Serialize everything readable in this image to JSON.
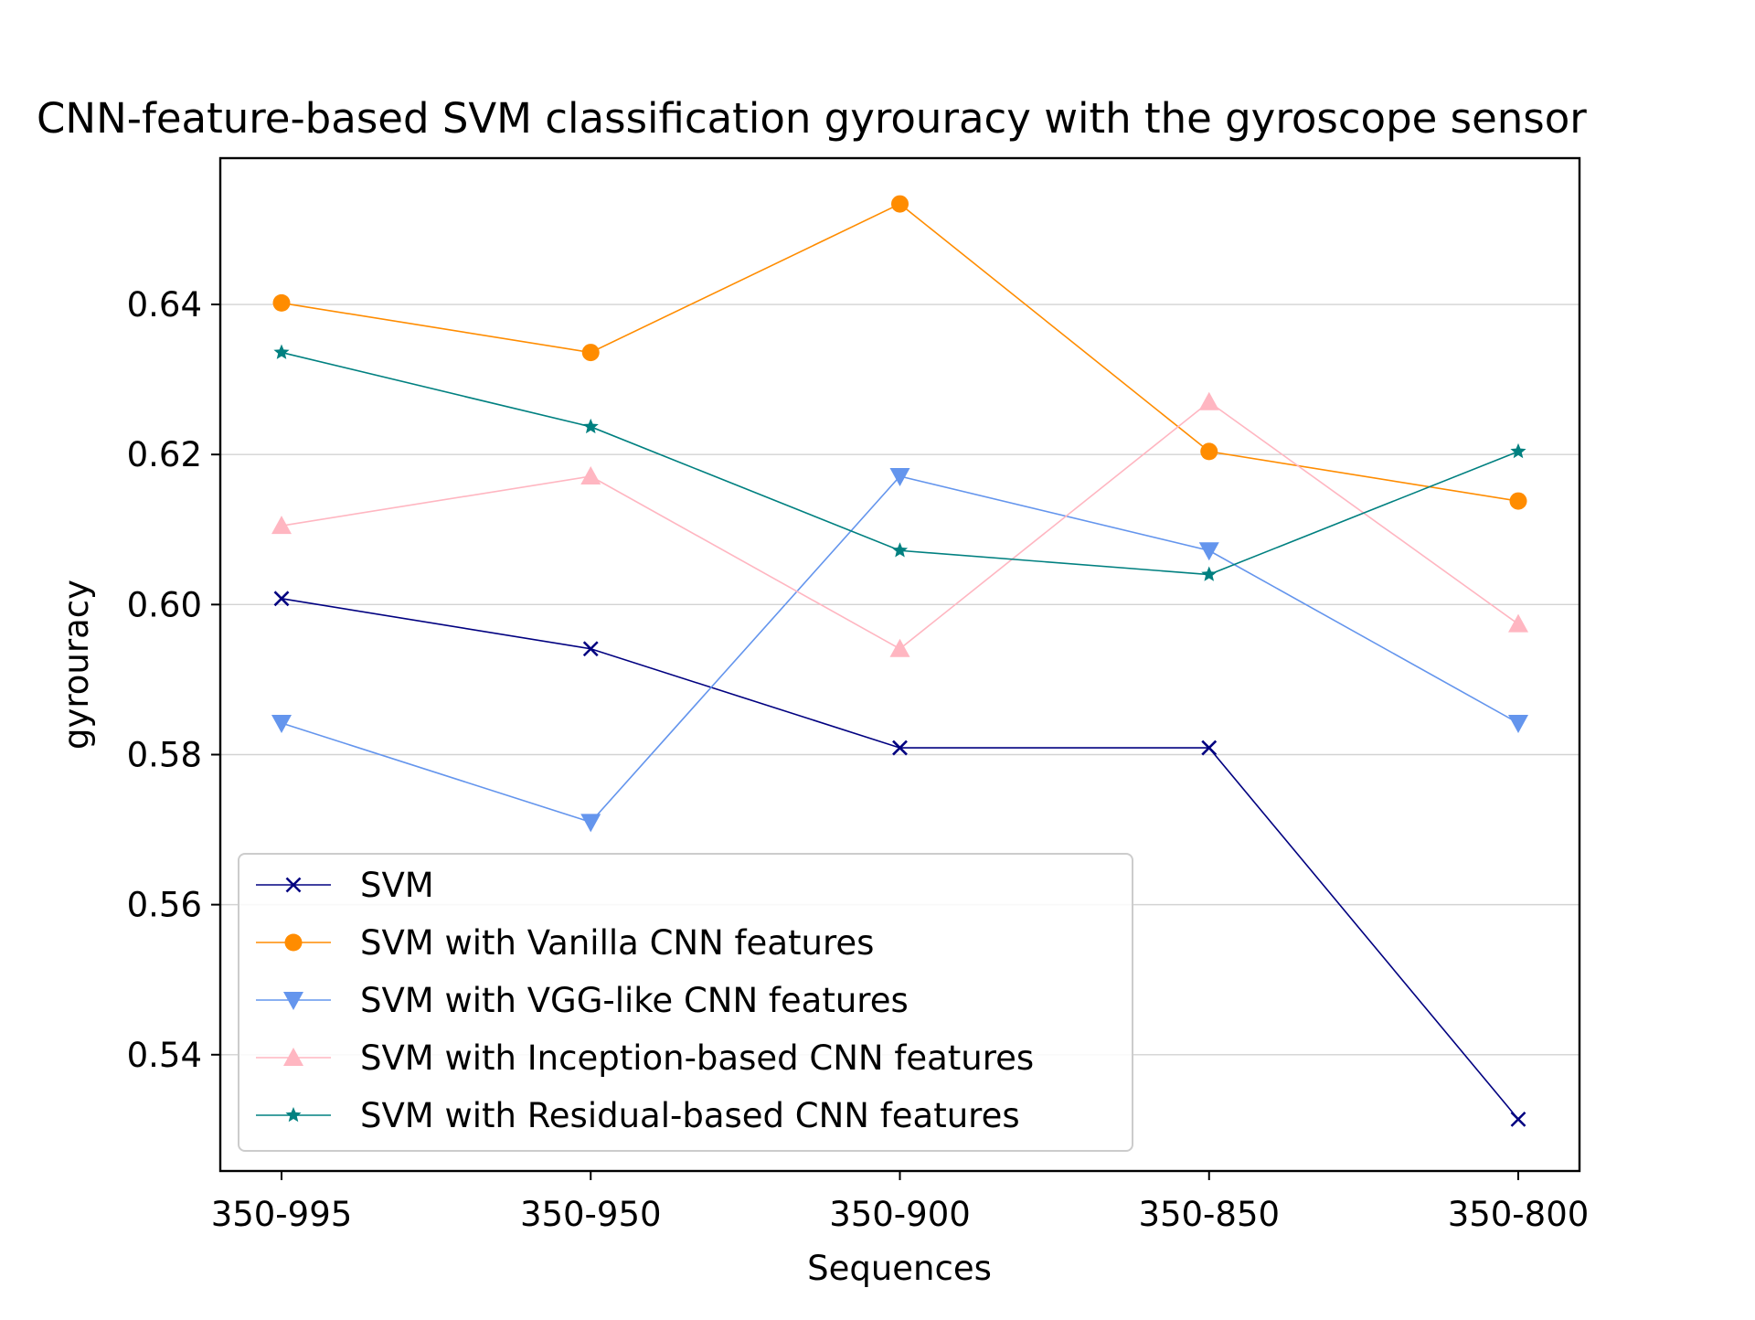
{
  "chart_data": {
    "type": "line",
    "title": "CNN-feature-based SVM classification gyrouracy with the gyroscope sensor",
    "xlabel": "Sequences",
    "ylabel": "gyrouracy",
    "categories": [
      "350-995",
      "350-950",
      "350-900",
      "350-850",
      "350-800"
    ],
    "ylim": [
      0.5245,
      0.6595
    ],
    "yticks": [
      0.54,
      0.56,
      0.58,
      0.6,
      0.62,
      0.64
    ],
    "ytick_labels": [
      "0.54",
      "0.56",
      "0.58",
      "0.60",
      "0.62",
      "0.64"
    ],
    "grid": "horizontal",
    "legend_position": "lower-left",
    "series": [
      {
        "name": "SVM",
        "color": "#000080",
        "marker": "x",
        "values": [
          0.6008,
          0.5941,
          0.5809,
          0.5809,
          0.5314
        ]
      },
      {
        "name": "SVM with Vanilla CNN features",
        "color": "#ff8c00",
        "marker": "circle",
        "values": [
          0.6402,
          0.6336,
          0.6534,
          0.6204,
          0.6138
        ]
      },
      {
        "name": "SVM with VGG-like CNN features",
        "color": "#6495ed",
        "marker": "triangle-down",
        "values": [
          0.5842,
          0.571,
          0.6171,
          0.6072,
          0.5842
        ]
      },
      {
        "name": "SVM with Inception-based CNN features",
        "color": "#ffb6c1",
        "marker": "triangle-up",
        "values": [
          0.6105,
          0.6171,
          0.5941,
          0.627,
          0.5974
        ]
      },
      {
        "name": "SVM with Residual-based CNN features",
        "color": "#008080",
        "marker": "star",
        "values": [
          0.6336,
          0.6237,
          0.6072,
          0.604,
          0.6204
        ]
      }
    ]
  }
}
